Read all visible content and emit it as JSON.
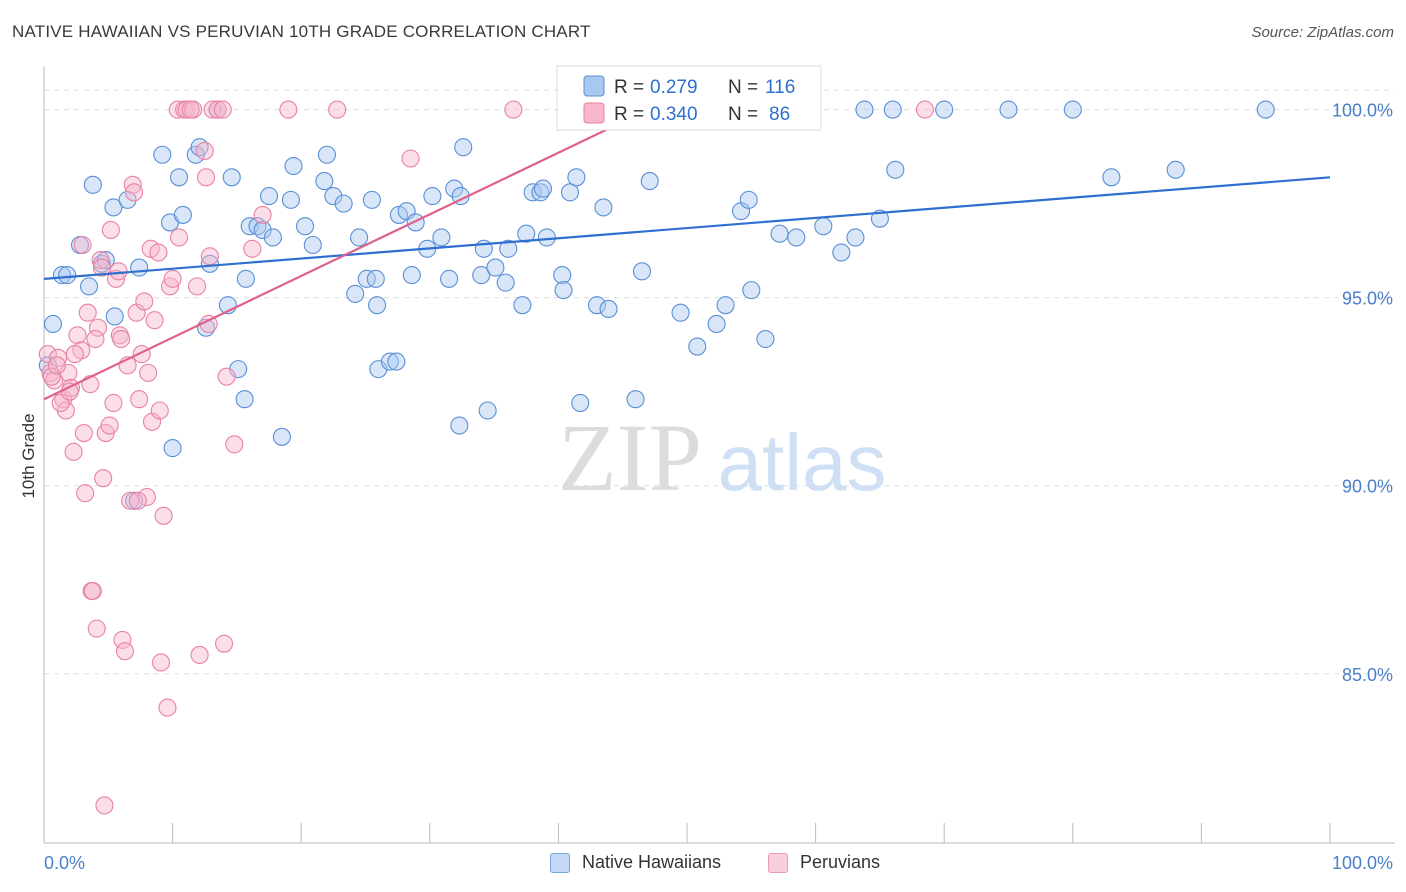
{
  "header": {
    "title": "NATIVE HAWAIIAN VS PERUVIAN 10TH GRADE CORRELATION CHART",
    "source": "Source: ZipAtlas.com"
  },
  "watermark": {
    "zip": "ZIP",
    "atlas": "atlas"
  },
  "legend_top": {
    "r_label": "R = ",
    "n_label": "N = ",
    "rows": [
      {
        "name": "Native Hawaiians",
        "r": "0.279",
        "n": "116"
      },
      {
        "name": "Peruvians",
        "r": "0.340",
        "n": "86"
      }
    ]
  },
  "legend_bottom": [
    "Native Hawaiians",
    "Peruvians"
  ],
  "colors": {
    "blue_fill": "#a8c8f0",
    "blue_stroke": "#5a8fd6",
    "blue_line": "#2f6fcf",
    "pink_fill": "#f6b6cb",
    "pink_stroke": "#e882a4",
    "pink_line": "#e0608c",
    "tick_text": "#4a7fc9",
    "grid": "#dddddd"
  },
  "chart_data": {
    "type": "scatter",
    "title": "NATIVE HAWAIIAN VS PERUVIAN 10TH GRADE CORRELATION CHART",
    "xlabel": "",
    "ylabel": "10th Grade",
    "xlim": [
      0,
      100
    ],
    "ylim": [
      80.5,
      101
    ],
    "x_tick_labels": [
      "0.0%",
      "100.0%"
    ],
    "y_ticks": [
      100,
      95,
      90,
      85
    ],
    "y_tick_labels": [
      "100.0%",
      "95.0%",
      "90.0%",
      "85.0%"
    ],
    "grid": true,
    "series": [
      {
        "name": "Native Hawaiians",
        "r": 0.279,
        "n": 116,
        "trend": {
          "x": [
            0,
            100
          ],
          "y": [
            95.5,
            98.2
          ]
        },
        "points": [
          [
            0.3,
            93.2
          ],
          [
            0.7,
            94.3
          ],
          [
            1.4,
            95.6
          ],
          [
            1.8,
            95.6
          ],
          [
            2.8,
            96.4
          ],
          [
            3.5,
            95.3
          ],
          [
            3.8,
            98.0
          ],
          [
            4.5,
            95.9
          ],
          [
            4.8,
            96.0
          ],
          [
            5.4,
            97.4
          ],
          [
            5.5,
            94.5
          ],
          [
            6.5,
            97.6
          ],
          [
            7.4,
            95.8
          ],
          [
            9.2,
            98.8
          ],
          [
            9.8,
            97.0
          ],
          [
            10.5,
            98.2
          ],
          [
            10.8,
            97.2
          ],
          [
            11.8,
            98.8
          ],
          [
            12.1,
            99.0
          ],
          [
            12.6,
            94.2
          ],
          [
            12.9,
            95.9
          ],
          [
            14.3,
            94.8
          ],
          [
            14.6,
            98.2
          ],
          [
            15.1,
            93.1
          ],
          [
            15.6,
            92.3
          ],
          [
            15.7,
            95.5
          ],
          [
            16.0,
            96.9
          ],
          [
            16.6,
            96.9
          ],
          [
            17.0,
            96.8
          ],
          [
            17.5,
            97.7
          ],
          [
            17.8,
            96.6
          ],
          [
            18.5,
            91.3
          ],
          [
            19.2,
            97.6
          ],
          [
            19.4,
            98.5
          ],
          [
            20.3,
            96.9
          ],
          [
            20.9,
            96.4
          ],
          [
            21.8,
            98.1
          ],
          [
            22.0,
            98.8
          ],
          [
            22.5,
            97.7
          ],
          [
            23.3,
            97.5
          ],
          [
            24.2,
            95.1
          ],
          [
            24.5,
            96.6
          ],
          [
            25.1,
            95.5
          ],
          [
            25.5,
            97.6
          ],
          [
            25.8,
            95.5
          ],
          [
            25.9,
            94.8
          ],
          [
            26.0,
            93.1
          ],
          [
            26.9,
            93.3
          ],
          [
            27.4,
            93.3
          ],
          [
            27.6,
            97.2
          ],
          [
            28.2,
            97.3
          ],
          [
            28.6,
            95.6
          ],
          [
            28.9,
            97.0
          ],
          [
            29.8,
            96.3
          ],
          [
            30.2,
            97.7
          ],
          [
            30.9,
            96.6
          ],
          [
            31.5,
            95.5
          ],
          [
            31.9,
            97.9
          ],
          [
            32.3,
            91.6
          ],
          [
            32.4,
            97.7
          ],
          [
            32.6,
            99.0
          ],
          [
            34.0,
            95.6
          ],
          [
            34.2,
            96.3
          ],
          [
            34.5,
            92.0
          ],
          [
            35.1,
            95.8
          ],
          [
            35.9,
            95.4
          ],
          [
            36.1,
            96.3
          ],
          [
            37.2,
            94.8
          ],
          [
            37.5,
            96.7
          ],
          [
            38.0,
            97.8
          ],
          [
            38.6,
            97.8
          ],
          [
            38.8,
            97.9
          ],
          [
            39.1,
            96.6
          ],
          [
            40.3,
            95.6
          ],
          [
            40.4,
            95.2
          ],
          [
            40.9,
            97.8
          ],
          [
            41.4,
            98.2
          ],
          [
            41.7,
            92.2
          ],
          [
            43.0,
            94.8
          ],
          [
            43.5,
            97.4
          ],
          [
            43.9,
            94.7
          ],
          [
            46.0,
            92.3
          ],
          [
            46.5,
            95.7
          ],
          [
            47.1,
            98.1
          ],
          [
            49.5,
            94.6
          ],
          [
            50.8,
            93.7
          ],
          [
            52.3,
            94.3
          ],
          [
            53.0,
            94.8
          ],
          [
            54.2,
            97.3
          ],
          [
            54.8,
            97.6
          ],
          [
            55.0,
            95.2
          ],
          [
            56.1,
            93.9
          ],
          [
            57.2,
            96.7
          ],
          [
            58.5,
            96.6
          ],
          [
            60.6,
            96.9
          ],
          [
            62.0,
            96.2
          ],
          [
            63.1,
            96.6
          ],
          [
            63.8,
            100.0
          ],
          [
            65.0,
            97.1
          ],
          [
            66.2,
            98.4
          ],
          [
            66.0,
            100.0
          ],
          [
            70.0,
            100.0
          ],
          [
            80.0,
            100.0
          ],
          [
            83.0,
            98.2
          ],
          [
            95.0,
            100.0
          ],
          [
            41.0,
            100.0
          ],
          [
            42.5,
            100.0
          ],
          [
            45.0,
            100.0
          ],
          [
            47.5,
            100.0
          ],
          [
            49.0,
            100.0
          ],
          [
            58.0,
            100.0
          ],
          [
            75.0,
            100.0
          ],
          [
            10.0,
            91.0
          ],
          [
            7.0,
            89.6
          ],
          [
            13.5,
            100.0
          ],
          [
            88.0,
            98.4
          ]
        ]
      },
      {
        "name": "Peruvians",
        "r": 0.34,
        "n": 86,
        "trend": {
          "x": [
            0,
            47
          ],
          "y": [
            92.3,
            100.0
          ]
        },
        "points": [
          [
            0.3,
            93.5
          ],
          [
            0.5,
            93.0
          ],
          [
            0.8,
            92.8
          ],
          [
            1.1,
            93.4
          ],
          [
            1.5,
            92.3
          ],
          [
            1.7,
            92.0
          ],
          [
            1.9,
            93.0
          ],
          [
            2.1,
            92.6
          ],
          [
            2.3,
            90.9
          ],
          [
            2.6,
            94.0
          ],
          [
            2.9,
            93.6
          ],
          [
            3.1,
            91.4
          ],
          [
            3.2,
            89.8
          ],
          [
            3.4,
            94.6
          ],
          [
            3.6,
            92.7
          ],
          [
            3.7,
            87.2
          ],
          [
            3.8,
            87.2
          ],
          [
            4.1,
            86.2
          ],
          [
            4.2,
            94.2
          ],
          [
            4.4,
            96.0
          ],
          [
            4.6,
            90.2
          ],
          [
            4.8,
            91.4
          ],
          [
            5.1,
            91.6
          ],
          [
            5.2,
            96.8
          ],
          [
            5.4,
            92.2
          ],
          [
            5.6,
            95.5
          ],
          [
            5.9,
            94.0
          ],
          [
            6.1,
            85.9
          ],
          [
            6.3,
            85.6
          ],
          [
            6.5,
            93.2
          ],
          [
            6.7,
            89.6
          ],
          [
            6.9,
            98.0
          ],
          [
            7.0,
            97.8
          ],
          [
            7.2,
            94.6
          ],
          [
            7.4,
            92.3
          ],
          [
            7.6,
            93.5
          ],
          [
            7.8,
            94.9
          ],
          [
            8.0,
            89.7
          ],
          [
            8.3,
            96.3
          ],
          [
            8.4,
            91.7
          ],
          [
            8.6,
            94.4
          ],
          [
            8.9,
            96.2
          ],
          [
            9.1,
            85.3
          ],
          [
            9.3,
            89.2
          ],
          [
            9.6,
            84.1
          ],
          [
            9.8,
            95.3
          ],
          [
            10.0,
            95.5
          ],
          [
            10.4,
            100.0
          ],
          [
            10.9,
            100.0
          ],
          [
            11.1,
            100.0
          ],
          [
            11.6,
            100.0
          ],
          [
            11.9,
            95.3
          ],
          [
            12.1,
            85.5
          ],
          [
            12.5,
            98.9
          ],
          [
            12.6,
            98.2
          ],
          [
            12.8,
            94.3
          ],
          [
            13.1,
            100.0
          ],
          [
            13.5,
            100.0
          ],
          [
            13.9,
            100.0
          ],
          [
            14.0,
            85.8
          ],
          [
            14.2,
            92.9
          ],
          [
            14.8,
            91.1
          ],
          [
            16.2,
            96.3
          ],
          [
            17.0,
            97.2
          ],
          [
            19.0,
            100.0
          ],
          [
            22.8,
            100.0
          ],
          [
            28.5,
            98.7
          ],
          [
            36.5,
            100.0
          ],
          [
            0.6,
            92.9
          ],
          [
            1.0,
            93.2
          ],
          [
            1.3,
            92.2
          ],
          [
            2.0,
            92.5
          ],
          [
            2.4,
            93.5
          ],
          [
            4.5,
            95.8
          ],
          [
            5.8,
            95.7
          ],
          [
            6.0,
            93.9
          ],
          [
            7.3,
            89.6
          ],
          [
            8.1,
            93.0
          ],
          [
            11.4,
            100.0
          ],
          [
            68.5,
            100.0
          ],
          [
            3.0,
            96.4
          ],
          [
            4.0,
            93.9
          ],
          [
            9.0,
            92.0
          ],
          [
            10.5,
            96.6
          ],
          [
            12.9,
            96.1
          ],
          [
            4.7,
            81.5
          ]
        ]
      }
    ]
  }
}
